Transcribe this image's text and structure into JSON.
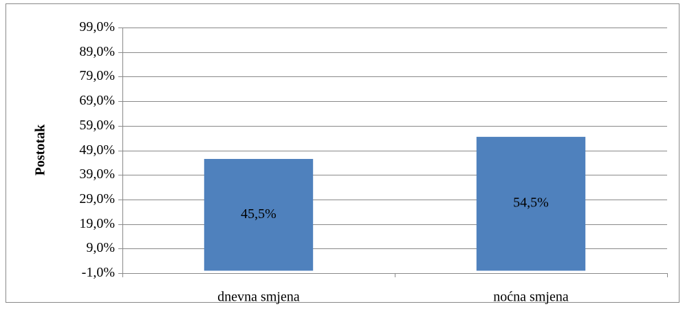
{
  "chart_data": {
    "type": "bar",
    "y_label": "Postotak",
    "categories": [
      "dnevna smjena",
      "noćna smjena"
    ],
    "values": [
      45.5,
      54.5
    ],
    "value_labels": [
      "45,5%",
      "54,5%"
    ],
    "color": "#4f81bd",
    "ylim": [
      -1,
      99
    ],
    "yticks": [
      {
        "value": -1,
        "label": "-1,0%"
      },
      {
        "value": 9,
        "label": "9,0%"
      },
      {
        "value": 19,
        "label": "19,0%"
      },
      {
        "value": 29,
        "label": "29,0%"
      },
      {
        "value": 39,
        "label": "39,0%"
      },
      {
        "value": 49,
        "label": "49,0%"
      },
      {
        "value": 59,
        "label": "59,0%"
      },
      {
        "value": 69,
        "label": "69,0%"
      },
      {
        "value": 79,
        "label": "79,0%"
      },
      {
        "value": 89,
        "label": "89,0%"
      },
      {
        "value": 99,
        "label": "99,0%"
      }
    ],
    "grid": true
  }
}
